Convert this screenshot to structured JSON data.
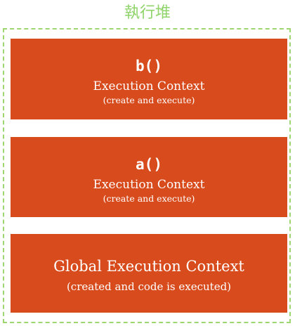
{
  "title": "執行堆",
  "contexts": [
    {
      "name": "b()",
      "label": "Execution Context",
      "note": "(create and execute)"
    },
    {
      "name": "a()",
      "label": "Execution Context",
      "note": "(create and execute)"
    },
    {
      "label": "Global Execution Context",
      "note": "(created and code is executed)"
    }
  ],
  "colors": {
    "context_fill": "#d84b1c",
    "frame_border": "#9ed66f",
    "title_text": "#8fd46a"
  }
}
